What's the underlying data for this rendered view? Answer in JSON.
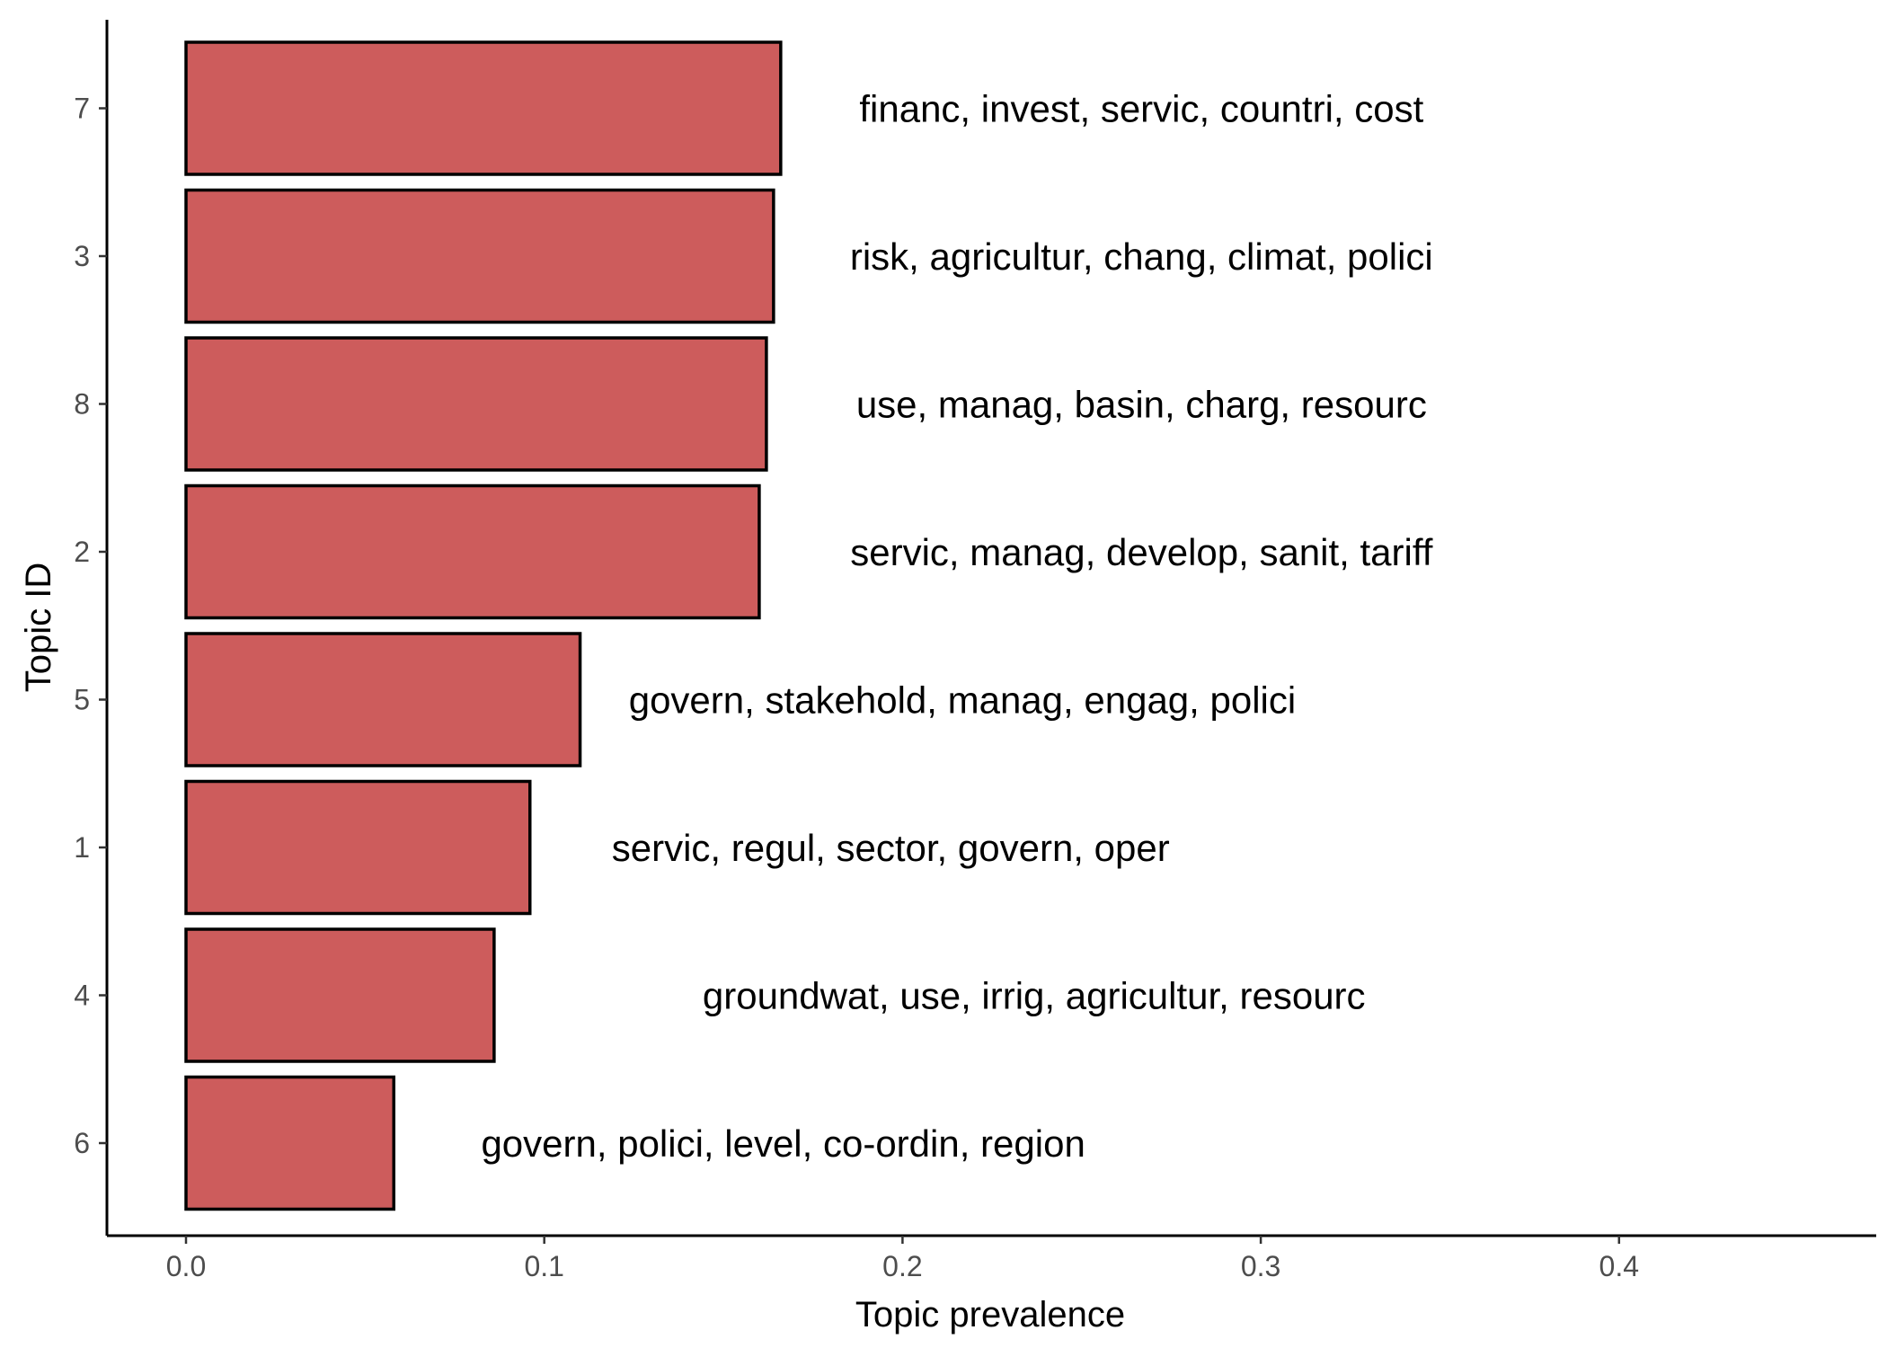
{
  "chart_data": {
    "type": "bar",
    "orientation": "horizontal",
    "xlabel": "Topic prevalence",
    "ylabel": "Topic ID",
    "xlim": [
      -0.022,
      0.473
    ],
    "xticks": [
      "0.0",
      "0.1",
      "0.2",
      "0.3",
      "0.4"
    ],
    "xtick_values": [
      0.0,
      0.1,
      0.2,
      0.3,
      0.4
    ],
    "grid": false,
    "legend": "none",
    "bar_color": "#cd5c5c",
    "bar_edge_color": "#000000",
    "bars": [
      {
        "topic_id": "7",
        "value": 0.166,
        "label": "financ, invest, servic, countri, cost",
        "label_x": 0.2667
      },
      {
        "topic_id": "3",
        "value": 0.164,
        "label": "risk, agricultur, chang, climat, polici",
        "label_x": 0.2667
      },
      {
        "topic_id": "8",
        "value": 0.162,
        "label": "use, manag, basin, charg, resourc",
        "label_x": 0.2667
      },
      {
        "topic_id": "2",
        "value": 0.16,
        "label": "servic, manag, develop, sanit, tariff",
        "label_x": 0.2667
      },
      {
        "topic_id": "5",
        "value": 0.11,
        "label": "govern, stakehold, manag, engag, polici",
        "label_x": 0.2167
      },
      {
        "topic_id": "1",
        "value": 0.096,
        "label": "servic, regul, sector, govern, oper",
        "label_x": 0.1967
      },
      {
        "topic_id": "4",
        "value": 0.086,
        "label": "groundwat, use, irrig, agricultur, resourc",
        "label_x": 0.2367
      },
      {
        "topic_id": "6",
        "value": 0.058,
        "label": "govern, polici, level, co-ordin, region",
        "label_x": 0.1667
      }
    ]
  }
}
